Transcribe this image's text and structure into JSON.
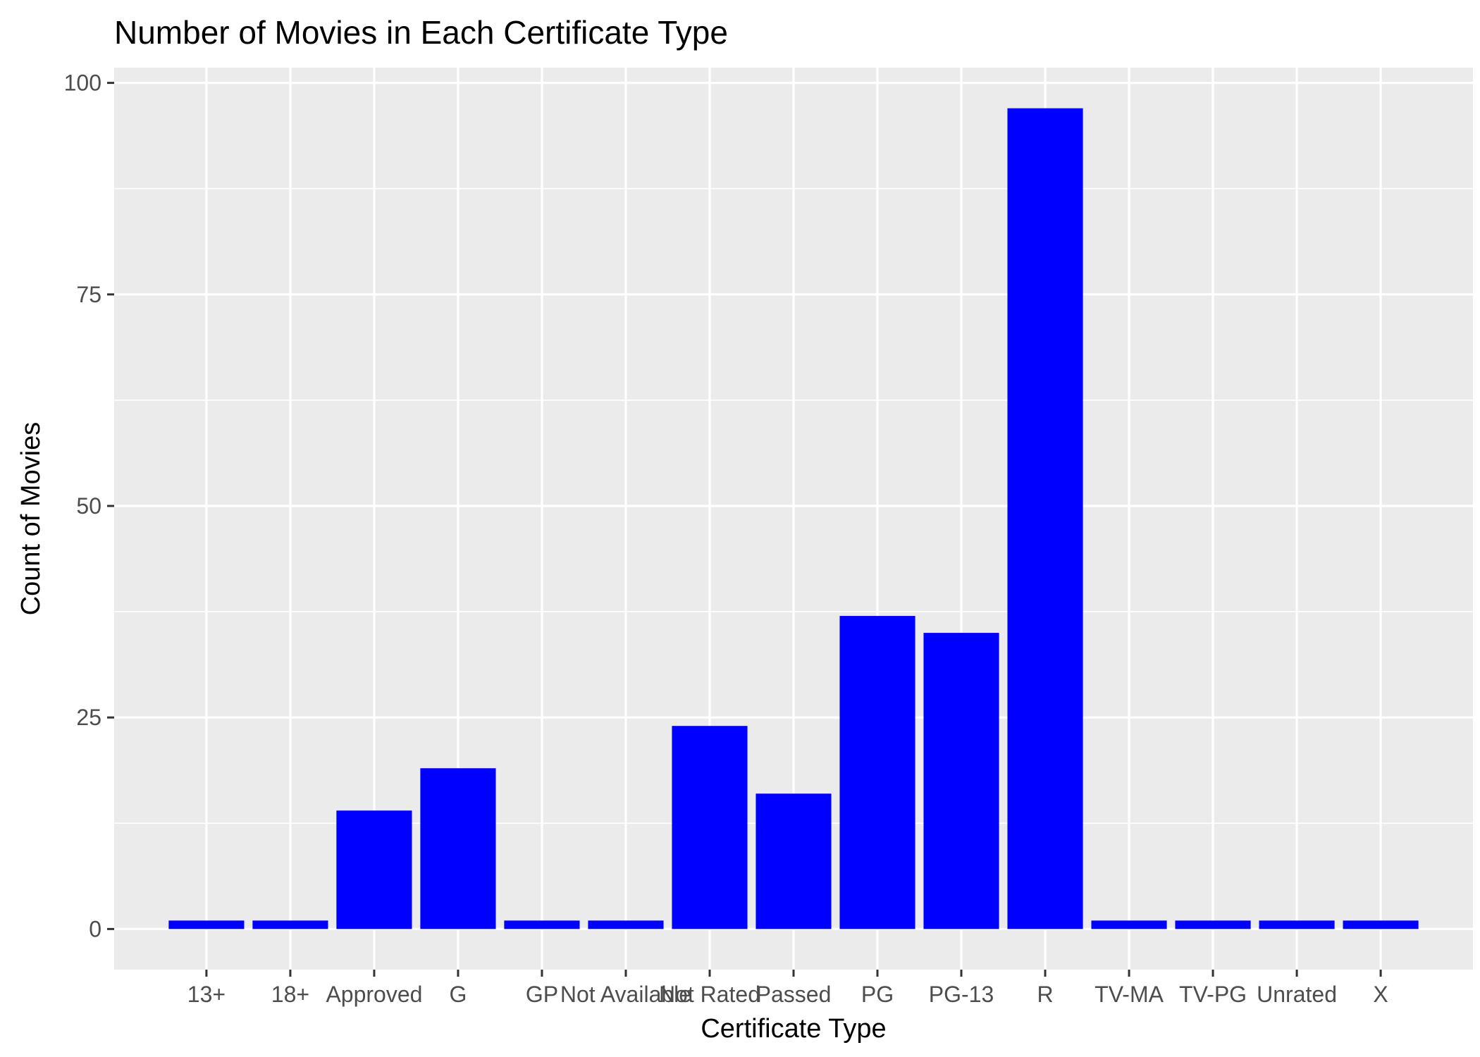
{
  "chart_data": {
    "type": "bar",
    "title": "Number of Movies in Each Certificate Type",
    "xlabel": "Certificate Type",
    "ylabel": "Count of Movies",
    "categories": [
      "13+",
      "18+",
      "Approved",
      "G",
      "GP",
      "Not Available",
      "Not Rated",
      "Passed",
      "PG",
      "PG-13",
      "R",
      "TV-MA",
      "TV-PG",
      "Unrated",
      "X"
    ],
    "values": [
      1,
      1,
      14,
      19,
      1,
      1,
      24,
      16,
      37,
      35,
      97,
      1,
      1,
      1,
      1
    ],
    "ylim": [
      -4.8,
      101.8
    ],
    "yticks": [
      0,
      25,
      50,
      75,
      100
    ],
    "grid": true,
    "legend": "none",
    "colors": {
      "bar": "#0000FF",
      "panel": "#EBEBEB",
      "grid": "#FFFFFF",
      "tick": "#333333"
    }
  }
}
